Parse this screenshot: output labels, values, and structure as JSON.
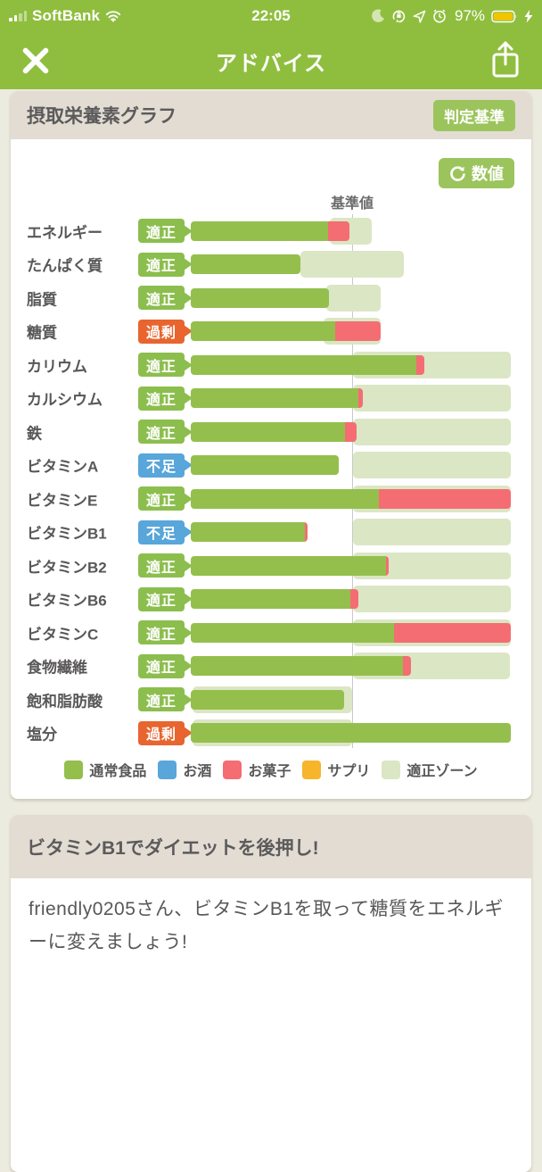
{
  "status_bar": {
    "carrier": "SoftBank",
    "time": "22:05",
    "battery_percent": "97%",
    "icons": [
      "signal-icon",
      "wifi-icon",
      "moon-icon",
      "orientation-lock-icon",
      "location-icon",
      "alarm-icon",
      "battery-icon",
      "charging-bolt-icon"
    ]
  },
  "nav_bar": {
    "title": "アドバイス"
  },
  "chart_card": {
    "header_title": "摂取栄養素グラフ",
    "criteria_button_label": "判定基準",
    "numeric_toggle_label": "数値",
    "baseline_label": "基準値"
  },
  "chart_data": {
    "type": "bar",
    "orientation": "horizontal-stacked",
    "unit": "percent of bar track width (no numeric axis shown)",
    "baseline": {
      "label": "基準値",
      "position_pct": 50.4
    },
    "status_legend": {
      "ok": "適正",
      "excess": "過剰",
      "deficient": "不足"
    },
    "rows": [
      {
        "label": "エネルギー",
        "status": "適正",
        "status_type": "ok",
        "food_pct": 42.9,
        "sweets_pct": 6.7,
        "zone_start_pct": 43.5,
        "zone_end_pct": 56.5
      },
      {
        "label": "たんぱく質",
        "status": "適正",
        "status_type": "ok",
        "food_pct": 34.3,
        "sweets_pct": 0,
        "zone_start_pct": 34.3,
        "zone_end_pct": 66.6
      },
      {
        "label": "脂質",
        "status": "適正",
        "status_type": "ok",
        "food_pct": 43.2,
        "sweets_pct": 0,
        "zone_start_pct": 42.3,
        "zone_end_pct": 59.3
      },
      {
        "label": "糖質",
        "status": "過剰",
        "status_type": "excess",
        "food_pct": 45.1,
        "sweets_pct": 14.2,
        "zone_start_pct": 41.5,
        "zone_end_pct": 59.3
      },
      {
        "label": "カリウム",
        "status": "適正",
        "status_type": "ok",
        "food_pct": 70.5,
        "sweets_pct": 2.5,
        "zone_start_pct": 50.7,
        "zone_end_pct": 100
      },
      {
        "label": "カルシウム",
        "status": "適正",
        "status_type": "ok",
        "food_pct": 52.4,
        "sweets_pct": 1.4,
        "zone_start_pct": 50.7,
        "zone_end_pct": 100
      },
      {
        "label": "鉄",
        "status": "適正",
        "status_type": "ok",
        "food_pct": 48.2,
        "sweets_pct": 3.6,
        "zone_start_pct": 50.7,
        "zone_end_pct": 100
      },
      {
        "label": "ビタミンA",
        "status": "不足",
        "status_type": "deficient",
        "food_pct": 46.2,
        "sweets_pct": 0,
        "zone_start_pct": 50.7,
        "zone_end_pct": 100
      },
      {
        "label": "ビタミンE",
        "status": "適正",
        "status_type": "ok",
        "food_pct": 58.8,
        "sweets_pct": 41.2,
        "zone_start_pct": 50.7,
        "zone_end_pct": 100
      },
      {
        "label": "ビタミンB1",
        "status": "不足",
        "status_type": "deficient",
        "food_pct": 35.7,
        "sweets_pct": 0.9,
        "zone_start_pct": 50.7,
        "zone_end_pct": 100
      },
      {
        "label": "ビタミンB2",
        "status": "適正",
        "status_type": "ok",
        "food_pct": 61.0,
        "sweets_pct": 0.9,
        "zone_start_pct": 50.7,
        "zone_end_pct": 100
      },
      {
        "label": "ビタミンB6",
        "status": "適正",
        "status_type": "ok",
        "food_pct": 49.9,
        "sweets_pct": 2.5,
        "zone_start_pct": 50.7,
        "zone_end_pct": 100
      },
      {
        "label": "ビタミンC",
        "status": "適正",
        "status_type": "ok",
        "food_pct": 63.5,
        "sweets_pct": 36.5,
        "zone_start_pct": 50.7,
        "zone_end_pct": 100
      },
      {
        "label": "食物繊維",
        "status": "適正",
        "status_type": "ok",
        "food_pct": 66.3,
        "sweets_pct": 2.5,
        "zone_start_pct": 50.7,
        "zone_end_pct": 99.7
      },
      {
        "label": "飽和脂肪酸",
        "status": "適正",
        "status_type": "ok",
        "food_pct": 47.9,
        "sweets_pct": 0,
        "zone_start_pct": 0.6,
        "zone_end_pct": 50.4
      },
      {
        "label": "塩分",
        "status": "過剰",
        "status_type": "excess",
        "food_pct": 100,
        "sweets_pct": 0,
        "zone_start_pct": 0.6,
        "zone_end_pct": 50.4
      }
    ],
    "legend": [
      {
        "label": "通常食品",
        "color": "#94bf4d",
        "key": "food"
      },
      {
        "label": "お酒",
        "color": "#58a6da",
        "key": "alcohol"
      },
      {
        "label": "お菓子",
        "color": "#f46d73",
        "key": "sweets"
      },
      {
        "label": "サプリ",
        "color": "#f7b52c",
        "key": "supplement"
      },
      {
        "label": "適正ゾーン",
        "color": "#dbe6c4",
        "key": "zone"
      }
    ]
  },
  "advice_card": {
    "title": "ビタミンB1でダイエットを後押し!",
    "body": "friendly0205さん、ビタミンB1を取って糖質をエネルギーに変えましょう!"
  },
  "colors": {
    "app_green": "#8fbe3f",
    "bar_green": "#94bf4d",
    "zone_green": "#dbe6c4",
    "sweets_red": "#f46d73",
    "alcohol_blue": "#58a6da",
    "supplement_orange": "#f7b52c",
    "badge_ok": "#8cbe4e",
    "badge_excess": "#e8652f",
    "badge_deficient": "#58a6da",
    "button_green": "#9cc45c",
    "page_background": "#ecebdf",
    "card_header_beige": "#e3dcd3",
    "text_gray": "#595757",
    "battery_yellow": "#f2c500"
  }
}
